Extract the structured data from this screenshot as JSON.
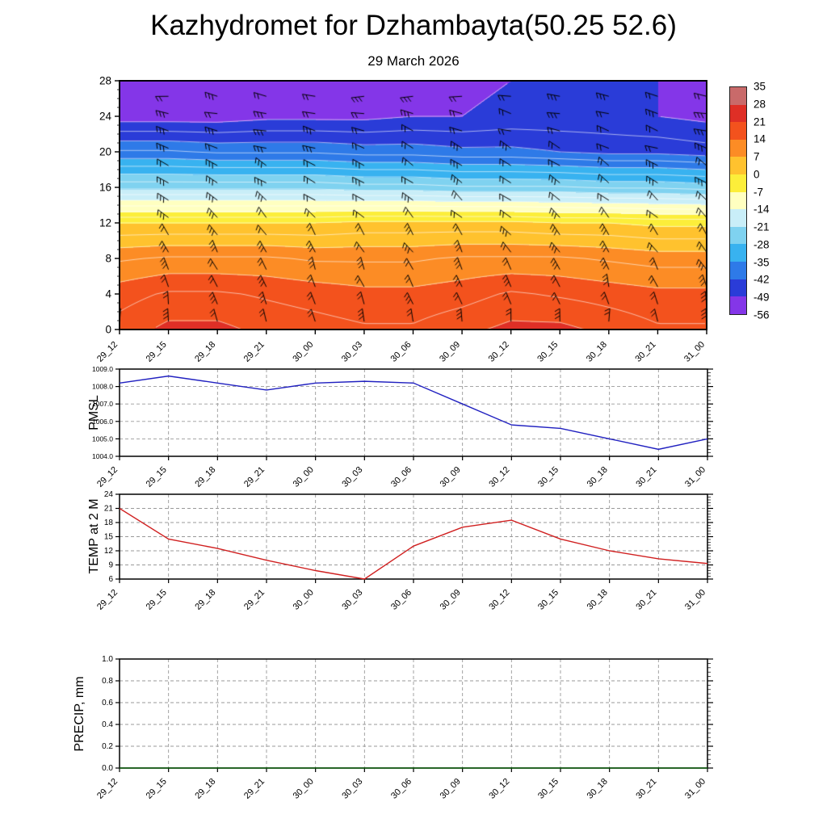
{
  "title": "Kazhydromet for Dzhambayta(50.25 52.6)",
  "subtitle": "29 March 2026",
  "time_labels": [
    "29_12",
    "29_15",
    "29_18",
    "29_21",
    "30_00",
    "30_03",
    "30_06",
    "30_09",
    "30_12",
    "30_15",
    "30_18",
    "30_21",
    "31_00"
  ],
  "chart_data": [
    {
      "type": "heatmap",
      "name": "upper-air temperature cross-section",
      "ylabel": "",
      "ylim": [
        0,
        28
      ],
      "yticks": [
        0,
        4,
        8,
        12,
        16,
        20,
        24,
        28
      ],
      "heights": [
        0,
        4,
        8,
        12,
        16,
        20,
        24,
        28
      ],
      "values_by_height": [
        [
          19,
          22,
          22,
          20,
          19,
          18,
          18,
          20,
          22,
          22,
          20,
          18,
          18
        ],
        [
          16,
          18,
          18,
          17,
          16,
          15,
          15,
          16,
          18,
          17,
          16,
          15,
          15
        ],
        [
          10,
          11,
          11,
          11,
          10,
          10,
          10,
          11,
          11,
          11,
          10,
          9,
          9
        ],
        [
          0,
          0,
          0,
          0,
          0,
          1,
          1,
          1,
          1,
          0,
          0,
          -1,
          -1
        ],
        [
          -22,
          -22,
          -22,
          -22,
          -22,
          -23,
          -23,
          -24,
          -24,
          -24,
          -25,
          -25,
          -26
        ],
        [
          -38,
          -38,
          -39,
          -39,
          -39,
          -40,
          -40,
          -41,
          -41,
          -42,
          -43,
          -43,
          -44
        ],
        [
          -51,
          -51,
          -51,
          -50,
          -50,
          -50,
          -49,
          -49,
          -48,
          -48,
          -48,
          -49,
          -50
        ],
        [
          -52,
          -52,
          -52,
          -51,
          -51,
          -51,
          -50,
          -50,
          -49,
          -48,
          -48,
          -49,
          -51
        ]
      ],
      "overlays": [
        "wind-barbs",
        "white-contour-lines"
      ],
      "colorbar": {
        "ticks": [
          35,
          28,
          21,
          14,
          7,
          0,
          -7,
          -14,
          -21,
          -28,
          -35,
          -42,
          -49,
          -56
        ],
        "colors": [
          "#c96a6a",
          "#df2f26",
          "#f3521d",
          "#fc8c25",
          "#ffc22e",
          "#fcee3a",
          "#ffffc0",
          "#c9eef8",
          "#7fd2f0",
          "#38b2f0",
          "#2e7ae8",
          "#2a3cd8",
          "#8436e8"
        ]
      }
    },
    {
      "type": "line",
      "ylabel": "PMSL",
      "line_color": "#2020c0",
      "ylim": [
        1004,
        1009
      ],
      "yticks": [
        1004,
        1005,
        1006,
        1007,
        1008,
        1009
      ],
      "ytick_labels": [
        "1004.0",
        "1005.0",
        "1006.0",
        "1007.0",
        "1008.0",
        "1009.0"
      ],
      "minor_step": 0.2,
      "values": [
        1008.2,
        1008.6,
        1008.2,
        1007.8,
        1008.2,
        1008.3,
        1008.2,
        1007.0,
        1005.8,
        1005.6,
        1005.0,
        1004.4,
        1005.0
      ]
    },
    {
      "type": "line",
      "ylabel": "TEMP at 2 M",
      "line_color": "#d02020",
      "ylim": [
        6,
        24
      ],
      "yticks": [
        6,
        9,
        12,
        15,
        18,
        21,
        24
      ],
      "ytick_labels": [
        "6",
        "9",
        "12",
        "15",
        "18",
        "21",
        "24"
      ],
      "minor_step": 0.6,
      "values": [
        21,
        14.5,
        12.5,
        10,
        7.8,
        6,
        13,
        17,
        18.5,
        14.5,
        12,
        10.3,
        9.3
      ]
    },
    {
      "type": "line",
      "ylabel": "PRECIP, mm",
      "line_color": "#0b5e0b",
      "ylim": [
        0,
        1
      ],
      "yticks": [
        0,
        0.2,
        0.4,
        0.6,
        0.8,
        1.0
      ],
      "ytick_labels": [
        "0.0",
        "0.2",
        "0.4",
        "0.6",
        "0.8",
        "1.0"
      ],
      "minor_step": 0.04,
      "values": [
        0,
        0,
        0,
        0,
        0,
        0,
        0,
        0,
        0,
        0,
        0,
        0,
        0
      ]
    }
  ]
}
